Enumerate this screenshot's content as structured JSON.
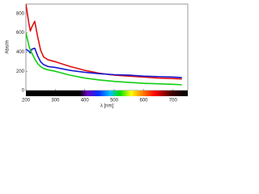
{
  "chart_data": {
    "type": "line",
    "x_label": "λ [nm]",
    "y_label": "Abs/m",
    "x": [
      200,
      210,
      215,
      220,
      230,
      240,
      250,
      260,
      275,
      300,
      350,
      400,
      450,
      500,
      550,
      600,
      650,
      700,
      730
    ],
    "series": [
      {
        "color": "#e01010",
        "values": [
          900,
          700,
          620,
          660,
          720,
          560,
          420,
          350,
          320,
          300,
          250,
          210,
          180,
          160,
          150,
          140,
          130,
          125,
          120
        ]
      },
      {
        "color": "#1a1ad0",
        "values": [
          430,
          410,
          390,
          430,
          440,
          360,
          300,
          270,
          250,
          240,
          210,
          190,
          175,
          165,
          160,
          150,
          145,
          140,
          135
        ]
      },
      {
        "color": "#10d010",
        "values": [
          600,
          470,
          420,
          390,
          330,
          280,
          250,
          230,
          215,
          200,
          160,
          130,
          110,
          95,
          85,
          75,
          70,
          65,
          60
        ]
      }
    ],
    "xlim": [
      200,
      750
    ],
    "ylim": [
      0,
      900
    ],
    "xticks": [
      200,
      300,
      400,
      500,
      600,
      700
    ],
    "yticks": [
      0,
      200,
      400,
      600,
      800
    ]
  }
}
